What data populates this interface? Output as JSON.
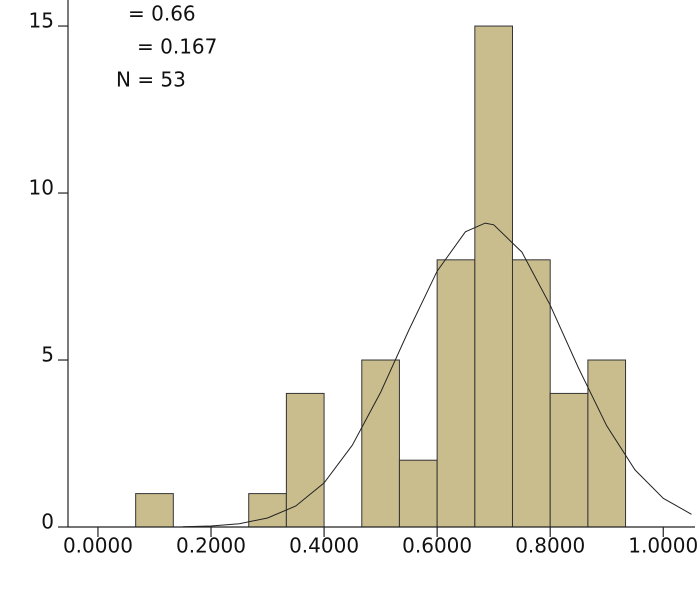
{
  "chart_data": {
    "type": "histogram",
    "bins": [
      0.0667,
      0.1333,
      0.2,
      0.2667,
      0.3333,
      0.4,
      0.4667,
      0.5333,
      0.6,
      0.6667,
      0.7333,
      0.8,
      0.8667,
      0.9333
    ],
    "values": [
      1,
      0,
      0,
      1,
      4,
      0,
      5,
      2,
      8,
      15,
      8,
      4,
      5
    ],
    "color": "#c9bd8e",
    "curve": {
      "x": [
        0.15,
        0.2,
        0.25,
        0.3,
        0.35,
        0.4,
        0.45,
        0.5,
        0.55,
        0.6,
        0.65,
        0.685,
        0.7,
        0.75,
        0.8,
        0.85,
        0.9,
        0.95,
        1.0,
        1.05
      ],
      "values": [
        0.01,
        0.03,
        0.1,
        0.27,
        0.63,
        1.32,
        2.45,
        4.03,
        5.9,
        7.66,
        8.84,
        9.1,
        9.05,
        8.23,
        6.64,
        4.76,
        3.03,
        1.71,
        0.86,
        0.38
      ]
    },
    "annotations": [
      "= 0.66",
      "= 0.167",
      "N = 53"
    ],
    "xlim": [
      -0.053,
      1.065
    ],
    "xticks": [
      {
        "value": 0,
        "label": "0.0000"
      },
      {
        "value": 0.2,
        "label": "0.2000"
      },
      {
        "value": 0.4,
        "label": "0.4000"
      },
      {
        "value": 0.6,
        "label": "0.6000"
      },
      {
        "value": 0.8,
        "label": "0.8000"
      },
      {
        "value": 1.0,
        "label": "1.0000"
      }
    ],
    "ylim": [
      0,
      15.78
    ],
    "yticks": [
      0,
      5,
      10,
      15
    ]
  }
}
